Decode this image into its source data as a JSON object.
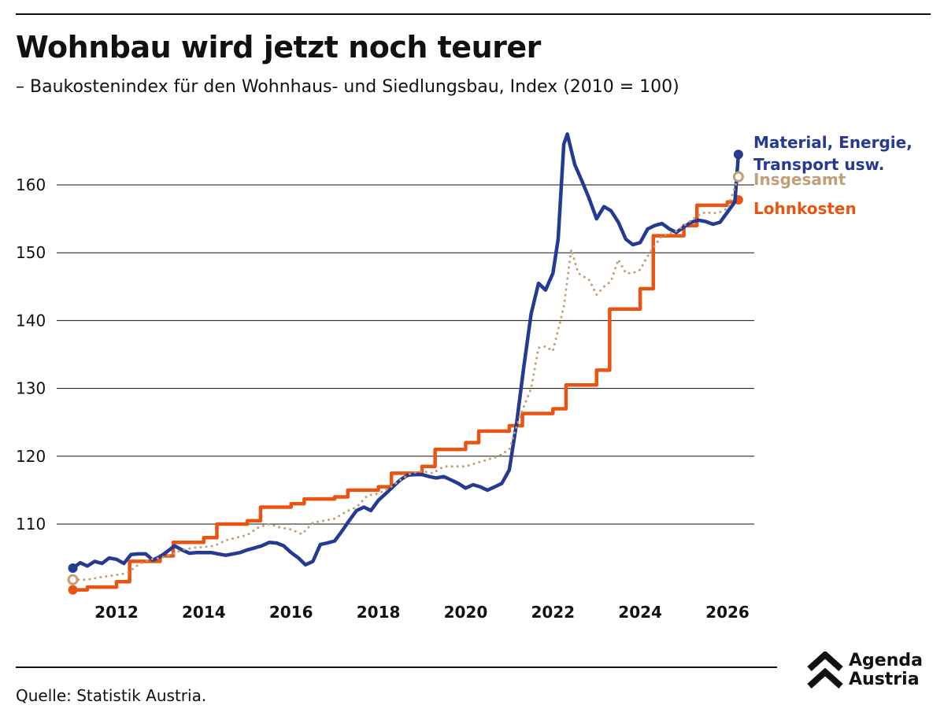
{
  "title": "Wohnbau wird jetzt noch teurer",
  "subtitle": "– Baukostenindex für den Wohnhaus- und Siedlungsbau, Index (2010 = 100)",
  "source": "Quelle: Statistik Austria.",
  "logo": {
    "line1": "Agenda",
    "line2": "Austria",
    "icon": "double-chevron-up-icon"
  },
  "chart_data": {
    "type": "line",
    "title": "Wohnbau wird jetzt noch teurer",
    "xlabel": "",
    "ylabel": "",
    "xlim": [
      2010.9,
      2026.6
    ],
    "ylim": [
      100,
      170
    ],
    "yticks": [
      110,
      120,
      130,
      140,
      150,
      160
    ],
    "xticks": [
      2012,
      2014,
      2016,
      2018,
      2020,
      2022,
      2024,
      2026
    ],
    "grid": "horizontal",
    "legend": "direct labels at line ends, right",
    "series": [
      {
        "name": "Material, Energie, Transport usw.",
        "color": "#253a93",
        "style": "solid",
        "points": [
          [
            2011.0,
            103.5
          ],
          [
            2011.17,
            104.3
          ],
          [
            2011.33,
            103.8
          ],
          [
            2011.5,
            104.5
          ],
          [
            2011.67,
            104.2
          ],
          [
            2011.83,
            105.0
          ],
          [
            2012.0,
            104.8
          ],
          [
            2012.17,
            104.2
          ],
          [
            2012.33,
            105.5
          ],
          [
            2012.5,
            105.6
          ],
          [
            2012.67,
            105.6
          ],
          [
            2012.83,
            104.7
          ],
          [
            2013.0,
            105.2
          ],
          [
            2013.17,
            106.0
          ],
          [
            2013.33,
            106.8
          ],
          [
            2013.5,
            106.2
          ],
          [
            2013.67,
            105.7
          ],
          [
            2013.83,
            105.8
          ],
          [
            2014.0,
            105.8
          ],
          [
            2014.17,
            105.8
          ],
          [
            2014.33,
            105.6
          ],
          [
            2014.5,
            105.4
          ],
          [
            2014.67,
            105.6
          ],
          [
            2014.83,
            105.8
          ],
          [
            2015.0,
            106.2
          ],
          [
            2015.17,
            106.5
          ],
          [
            2015.33,
            106.8
          ],
          [
            2015.5,
            107.3
          ],
          [
            2015.67,
            107.2
          ],
          [
            2015.83,
            106.8
          ],
          [
            2016.0,
            105.8
          ],
          [
            2016.17,
            105.0
          ],
          [
            2016.33,
            104.0
          ],
          [
            2016.5,
            104.5
          ],
          [
            2016.67,
            107.0
          ],
          [
            2016.83,
            107.2
          ],
          [
            2017.0,
            107.5
          ],
          [
            2017.17,
            109.0
          ],
          [
            2017.33,
            110.5
          ],
          [
            2017.5,
            112.0
          ],
          [
            2017.67,
            112.5
          ],
          [
            2017.83,
            112.0
          ],
          [
            2018.0,
            113.5
          ],
          [
            2018.17,
            114.5
          ],
          [
            2018.33,
            115.5
          ],
          [
            2018.5,
            116.5
          ],
          [
            2018.67,
            117.2
          ],
          [
            2018.83,
            117.3
          ],
          [
            2019.0,
            117.3
          ],
          [
            2019.17,
            117.0
          ],
          [
            2019.33,
            116.8
          ],
          [
            2019.5,
            117.0
          ],
          [
            2019.67,
            116.5
          ],
          [
            2019.83,
            116.0
          ],
          [
            2020.0,
            115.3
          ],
          [
            2020.17,
            115.8
          ],
          [
            2020.33,
            115.5
          ],
          [
            2020.5,
            115.0
          ],
          [
            2020.67,
            115.5
          ],
          [
            2020.83,
            116.0
          ],
          [
            2021.0,
            118.0
          ],
          [
            2021.17,
            125.0
          ],
          [
            2021.33,
            133.0
          ],
          [
            2021.5,
            141.0
          ],
          [
            2021.67,
            145.5
          ],
          [
            2021.83,
            144.5
          ],
          [
            2022.0,
            147.0
          ],
          [
            2022.12,
            152.0
          ],
          [
            2022.25,
            166.0
          ],
          [
            2022.33,
            167.5
          ],
          [
            2022.5,
            163.0
          ],
          [
            2022.67,
            160.5
          ],
          [
            2022.83,
            158.0
          ],
          [
            2023.0,
            155.0
          ],
          [
            2023.17,
            156.8
          ],
          [
            2023.33,
            156.2
          ],
          [
            2023.5,
            154.5
          ],
          [
            2023.67,
            152.0
          ],
          [
            2023.83,
            151.2
          ],
          [
            2024.0,
            151.5
          ],
          [
            2024.17,
            153.5
          ],
          [
            2024.33,
            154.0
          ],
          [
            2024.5,
            154.3
          ],
          [
            2024.67,
            153.5
          ],
          [
            2024.83,
            153.0
          ],
          [
            2025.0,
            153.8
          ],
          [
            2025.17,
            154.5
          ],
          [
            2025.33,
            154.8
          ],
          [
            2025.5,
            154.6
          ],
          [
            2025.67,
            154.2
          ],
          [
            2025.83,
            154.5
          ],
          [
            2026.0,
            156.0
          ],
          [
            2026.17,
            157.5
          ],
          [
            2026.25,
            164.5
          ]
        ]
      },
      {
        "name": "Insgesamt",
        "color": "#c39e76",
        "style": "dotted",
        "points": [
          [
            2011.0,
            101.8
          ],
          [
            2011.33,
            101.8
          ],
          [
            2011.67,
            102.2
          ],
          [
            2012.0,
            102.5
          ],
          [
            2012.25,
            102.8
          ],
          [
            2012.5,
            104.0
          ],
          [
            2012.75,
            104.8
          ],
          [
            2013.0,
            105.0
          ],
          [
            2013.25,
            105.5
          ],
          [
            2013.5,
            106.2
          ],
          [
            2013.75,
            106.5
          ],
          [
            2014.0,
            106.6
          ],
          [
            2014.25,
            106.8
          ],
          [
            2014.5,
            107.6
          ],
          [
            2014.75,
            108.0
          ],
          [
            2015.0,
            108.4
          ],
          [
            2015.25,
            109.5
          ],
          [
            2015.5,
            110.0
          ],
          [
            2015.75,
            109.5
          ],
          [
            2016.0,
            109.2
          ],
          [
            2016.25,
            108.5
          ],
          [
            2016.5,
            110.2
          ],
          [
            2016.75,
            110.5
          ],
          [
            2017.0,
            110.8
          ],
          [
            2017.25,
            111.8
          ],
          [
            2017.5,
            112.5
          ],
          [
            2017.75,
            114.2
          ],
          [
            2018.0,
            114.5
          ],
          [
            2018.25,
            115.3
          ],
          [
            2018.5,
            116.5
          ],
          [
            2018.75,
            117.5
          ],
          [
            2019.0,
            117.8
          ],
          [
            2019.25,
            117.5
          ],
          [
            2019.5,
            118.5
          ],
          [
            2019.75,
            118.5
          ],
          [
            2020.0,
            118.5
          ],
          [
            2020.25,
            119.0
          ],
          [
            2020.5,
            119.5
          ],
          [
            2020.75,
            120.0
          ],
          [
            2021.0,
            121.0
          ],
          [
            2021.25,
            126.0
          ],
          [
            2021.5,
            130.0
          ],
          [
            2021.67,
            136.0
          ],
          [
            2021.83,
            136.2
          ],
          [
            2022.0,
            135.5
          ],
          [
            2022.25,
            142.0
          ],
          [
            2022.42,
            150.5
          ],
          [
            2022.58,
            147.0
          ],
          [
            2022.83,
            146.0
          ],
          [
            2023.0,
            143.8
          ],
          [
            2023.17,
            145.0
          ],
          [
            2023.33,
            145.8
          ],
          [
            2023.5,
            149.0
          ],
          [
            2023.67,
            147.0
          ],
          [
            2023.83,
            147.0
          ],
          [
            2024.0,
            147.5
          ],
          [
            2024.17,
            149.5
          ],
          [
            2024.33,
            151.0
          ],
          [
            2024.5,
            152.5
          ],
          [
            2024.67,
            152.8
          ],
          [
            2024.83,
            153.2
          ],
          [
            2025.0,
            154.0
          ],
          [
            2025.17,
            154.8
          ],
          [
            2025.33,
            155.5
          ],
          [
            2025.5,
            156.0
          ],
          [
            2025.67,
            155.8
          ],
          [
            2025.83,
            156.0
          ],
          [
            2026.0,
            156.5
          ],
          [
            2026.25,
            161.2
          ]
        ]
      },
      {
        "name": "Lohnkosten",
        "color": "#ea5412",
        "style": "step",
        "points": [
          [
            2011.0,
            100.3
          ],
          [
            2011.33,
            100.7
          ],
          [
            2012.0,
            101.5
          ],
          [
            2012.3,
            104.5
          ],
          [
            2013.0,
            105.3
          ],
          [
            2013.3,
            107.3
          ],
          [
            2014.0,
            108.0
          ],
          [
            2014.3,
            110.0
          ],
          [
            2015.0,
            110.5
          ],
          [
            2015.3,
            112.5
          ],
          [
            2016.0,
            113.0
          ],
          [
            2016.3,
            113.7
          ],
          [
            2017.0,
            114.0
          ],
          [
            2017.3,
            115.0
          ],
          [
            2018.0,
            115.5
          ],
          [
            2018.3,
            117.5
          ],
          [
            2019.0,
            118.5
          ],
          [
            2019.3,
            121.0
          ],
          [
            2020.0,
            122.0
          ],
          [
            2020.3,
            123.7
          ],
          [
            2021.0,
            124.5
          ],
          [
            2021.3,
            126.3
          ],
          [
            2022.0,
            127.0
          ],
          [
            2022.3,
            130.5
          ],
          [
            2023.0,
            132.7
          ],
          [
            2023.3,
            141.7
          ],
          [
            2024.0,
            144.7
          ],
          [
            2024.3,
            152.5
          ],
          [
            2025.0,
            154.0
          ],
          [
            2025.3,
            157.0
          ],
          [
            2026.0,
            157.5
          ],
          [
            2026.25,
            157.8
          ]
        ]
      }
    ]
  }
}
